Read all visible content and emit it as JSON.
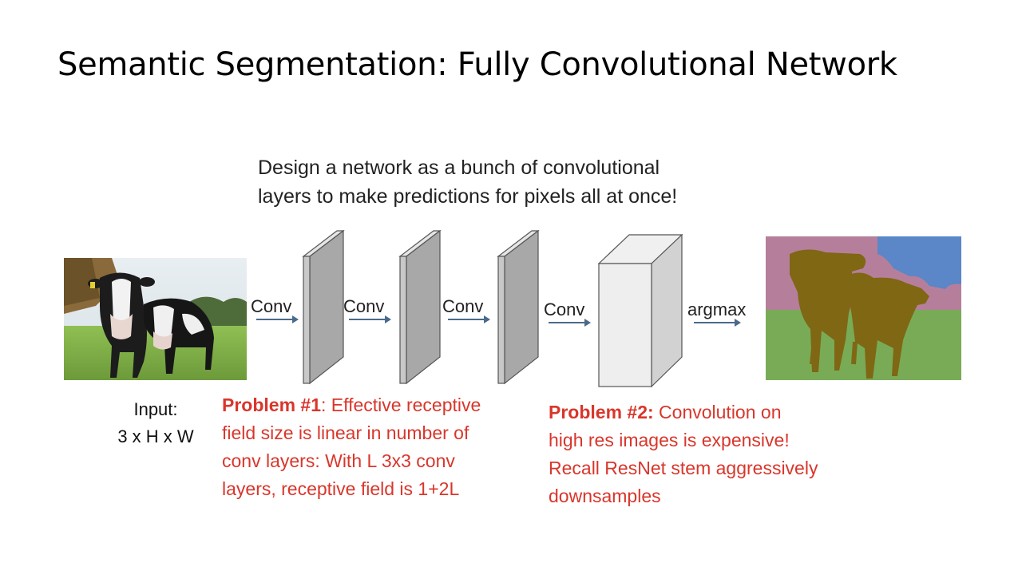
{
  "slide": {
    "title": "Semantic Segmentation: Fully Convolutional Network",
    "design_text": [
      "Design a network as a bunch of convolutional",
      "layers to  make predictions for pixels all at once!"
    ]
  },
  "diagram": {
    "operations": [
      "Conv",
      "Conv",
      "Conv",
      "Conv",
      "argmax"
    ],
    "input_caption": [
      "Input:",
      "3 x H x W"
    ]
  },
  "problems": {
    "p1": {
      "label": "Problem #1",
      "first_line_rest": ": Effective receptive",
      "lines": [
        "field size is linear in number of",
        "conv layers: With L 3x3 conv",
        "layers, receptive field is 1+2L"
      ]
    },
    "p2": {
      "label": "Problem #2:",
      "first_line_rest": " Convolution on",
      "lines": [
        "high res images is expensive!",
        "Recall ResNet stem aggressively",
        "downsamples"
      ]
    }
  },
  "colors": {
    "problem_text": "#d9362b",
    "block_face": "#c8c8c8",
    "block_side": "#a8a8a8",
    "block_top": "#e6e6e6",
    "seg_sky": "#5b86c7",
    "seg_trees": "#b57f9b",
    "seg_grass": "#79ab57",
    "seg_cow": "#7f6714"
  }
}
